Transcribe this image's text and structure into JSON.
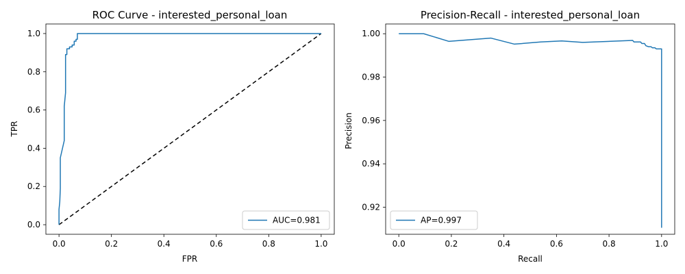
{
  "chart_data": [
    {
      "type": "line",
      "title": "ROC Curve - interested_personal_loan",
      "xlabel": "FPR",
      "ylabel": "TPR",
      "xlim": [
        -0.05,
        1.05
      ],
      "ylim": [
        -0.05,
        1.05
      ],
      "xticks": [
        "0.0",
        "0.2",
        "0.4",
        "0.6",
        "0.8",
        "1.0"
      ],
      "yticks": [
        "0.0",
        "0.2",
        "0.4",
        "0.6",
        "0.8",
        "1.0"
      ],
      "grid": false,
      "legend_position": "lower right",
      "series": [
        {
          "name": "AUC=0.981",
          "color": "#1f77b4",
          "style": "solid",
          "points": [
            [
              0.0,
              0.0
            ],
            [
              0.0,
              0.08
            ],
            [
              0.003,
              0.12
            ],
            [
              0.005,
              0.19
            ],
            [
              0.005,
              0.35
            ],
            [
              0.02,
              0.44
            ],
            [
              0.02,
              0.62
            ],
            [
              0.025,
              0.69
            ],
            [
              0.025,
              0.89
            ],
            [
              0.03,
              0.89
            ],
            [
              0.03,
              0.92
            ],
            [
              0.04,
              0.92
            ],
            [
              0.04,
              0.93
            ],
            [
              0.05,
              0.93
            ],
            [
              0.05,
              0.94
            ],
            [
              0.058,
              0.94
            ],
            [
              0.058,
              0.96
            ],
            [
              0.065,
              0.96
            ],
            [
              0.065,
              0.97
            ],
            [
              0.07,
              0.97
            ],
            [
              0.07,
              1.0
            ],
            [
              1.0,
              1.0
            ]
          ]
        }
      ],
      "reference_line": {
        "points": [
          [
            0.0,
            0.0
          ],
          [
            1.0,
            1.0
          ]
        ],
        "color": "#000000",
        "style": "dashed"
      }
    },
    {
      "type": "line",
      "title": "Precision-Recall - interested_personal_loan",
      "xlabel": "Recall",
      "ylabel": "Precision",
      "xlim": [
        -0.05,
        1.05
      ],
      "ylim": [
        0.9075,
        1.0045
      ],
      "xticks": [
        "0.0",
        "0.2",
        "0.4",
        "0.6",
        "0.8",
        "1.0"
      ],
      "yticks": [
        "0.92",
        "0.94",
        "0.96",
        "0.98",
        "1.00"
      ],
      "grid": false,
      "legend_position": "lower left",
      "series": [
        {
          "name": "AP=0.997",
          "color": "#1f77b4",
          "style": "solid",
          "points": [
            [
              0.0,
              1.0
            ],
            [
              0.095,
              1.0
            ],
            [
              0.19,
              0.9965
            ],
            [
              0.35,
              0.998
            ],
            [
              0.44,
              0.9952
            ],
            [
              0.54,
              0.9962
            ],
            [
              0.62,
              0.9967
            ],
            [
              0.7,
              0.996
            ],
            [
              0.89,
              0.9969
            ],
            [
              0.895,
              0.9962
            ],
            [
              0.92,
              0.9962
            ],
            [
              0.925,
              0.9955
            ],
            [
              0.935,
              0.9955
            ],
            [
              0.94,
              0.9945
            ],
            [
              0.95,
              0.994
            ],
            [
              0.96,
              0.994
            ],
            [
              0.965,
              0.9935
            ],
            [
              0.975,
              0.9935
            ],
            [
              0.98,
              0.993
            ],
            [
              0.99,
              0.993
            ],
            [
              0.995,
              0.993
            ],
            [
              1.0,
              0.993
            ],
            [
              1.0,
              0.9105
            ]
          ]
        }
      ]
    }
  ]
}
